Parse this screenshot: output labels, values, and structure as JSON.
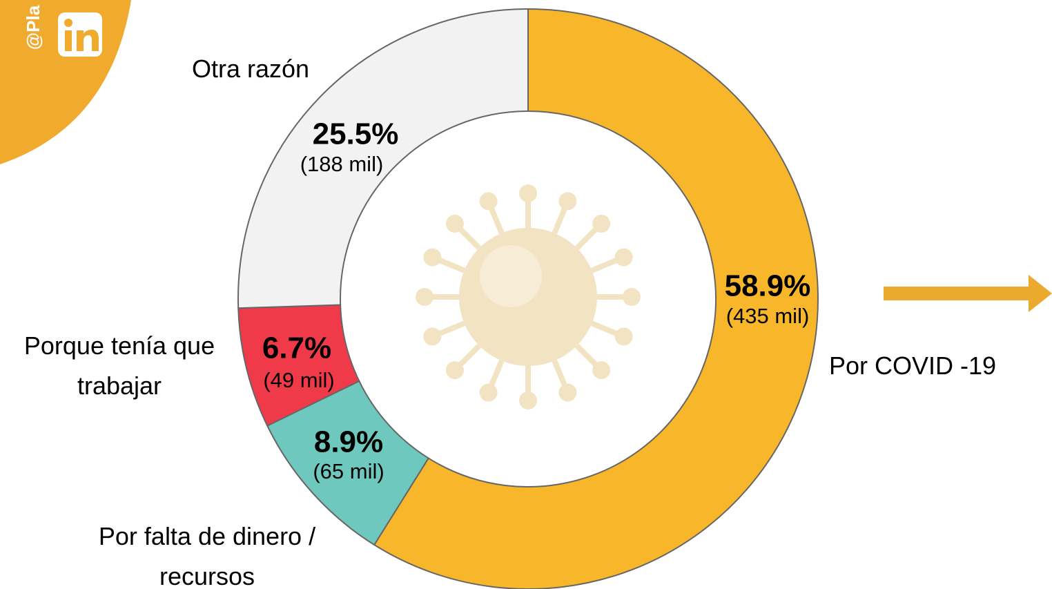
{
  "chart_data": {
    "type": "donut",
    "watermark": "@Pla",
    "categories": [
      "Por COVID -19",
      "Por falta de dinero / recursos",
      "Porque tenía que trabajar",
      "Otra razón"
    ],
    "values": [
      58.9,
      8.9,
      6.7,
      25.5
    ],
    "value_labels": [
      "58.9%",
      "8.9%",
      "6.7%",
      "25.5%"
    ],
    "counts": [
      435000,
      65000,
      49000,
      188000
    ],
    "count_labels": [
      "(435 mil)",
      "(65 mil)",
      "(49 mil)",
      "(188 mil)"
    ],
    "colors": [
      "#f8b62a",
      "#6ec8be",
      "#f03a4a",
      "#f2f2f2"
    ]
  }
}
